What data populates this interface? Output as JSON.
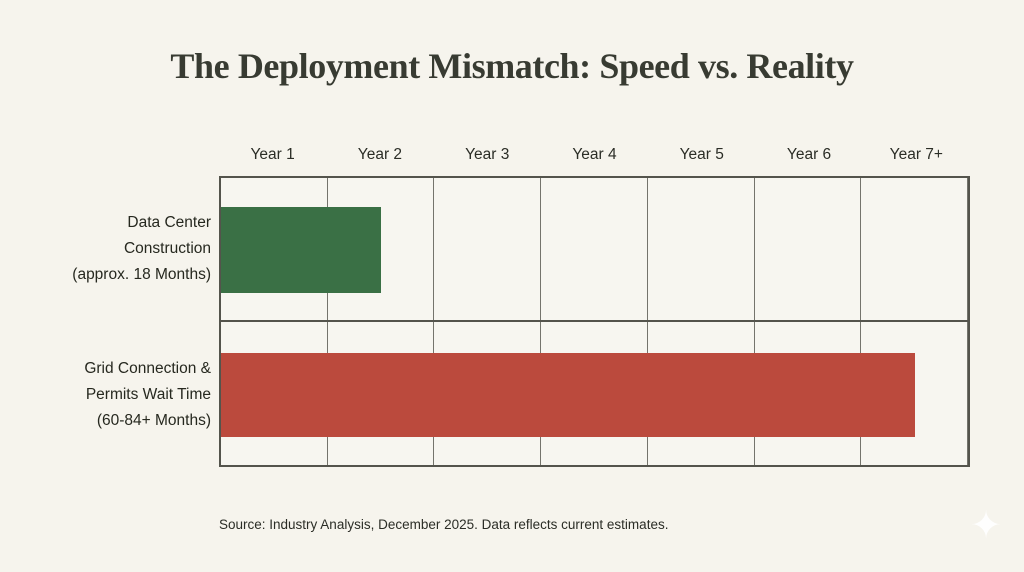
{
  "title": "The Deployment Mismatch: Speed vs. Reality",
  "source_note": "Source: Industry Analysis, December 2025. Data reflects current estimates.",
  "colors": {
    "background": "#F6F4ED",
    "panel": "#F7F6F0",
    "grid_line": "#74746C",
    "grid_border": "#54544C",
    "title_text": "#383B32",
    "body_text": "#26281F",
    "bar_green": "#3A7045",
    "bar_red": "#BB4A3D",
    "sparkle": "#FFFFFF"
  },
  "icons": {
    "sparkle_glyph": "✦",
    "sparkle_name": "four-pointed-star"
  },
  "chart_data": {
    "type": "bar",
    "orientation": "horizontal",
    "title": "The Deployment Mismatch: Speed vs. Reality",
    "x_ticks": [
      "Year 1",
      "Year 2",
      "Year 3",
      "Year 4",
      "Year 5",
      "Year 6",
      "Year 7+"
    ],
    "x_axis_unit": "years",
    "xlim_months": [
      0,
      84
    ],
    "grid": true,
    "legend": false,
    "rows": [
      {
        "label": "Data Center Construction (approx. 18 Months)",
        "label_lines": [
          "Data Center",
          "Construction",
          "(approx. 18 Months)"
        ],
        "value_months": 18,
        "color": "#3A7045"
      },
      {
        "label": "Grid Connection & Permits Wait Time (60-84+ Months)",
        "label_lines": [
          "Grid Connection &",
          "Permits Wait Time",
          "(60-84+ Months)"
        ],
        "value_months": 78,
        "value_range_months": "60-84+",
        "color": "#BB4A3D"
      }
    ]
  }
}
